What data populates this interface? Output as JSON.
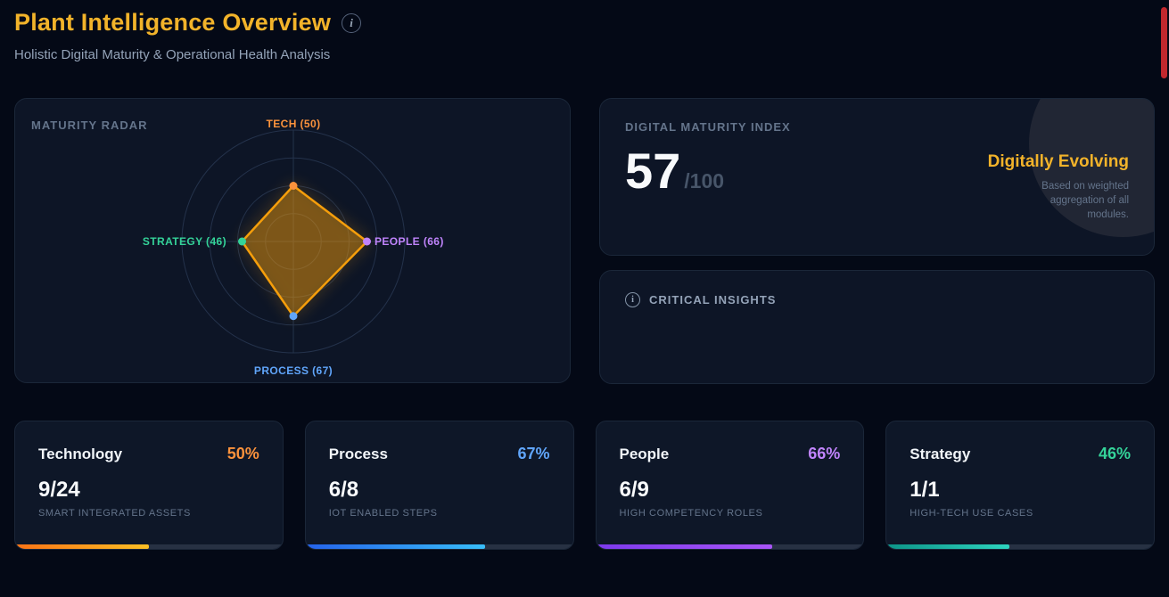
{
  "header": {
    "title": "Plant Intelligence Overview",
    "info_icon": "i",
    "subtitle": "Holistic Digital Maturity & Operational Health Analysis"
  },
  "maturity_radar": {
    "panel_title": "MATURITY RADAR",
    "chart_data": {
      "type": "radar",
      "max": 100,
      "grid_rings": 4,
      "legend_position": "none",
      "series_stroke": "#f59e0b",
      "series_fill": "rgba(245,158,11,0.38)",
      "axes": [
        {
          "label": "TECH",
          "value": 50,
          "display": "TECH (50)",
          "color": "#fb923c"
        },
        {
          "label": "PEOPLE",
          "value": 66,
          "display": "PEOPLE (66)",
          "color": "#c084fc"
        },
        {
          "label": "PROCESS",
          "value": 67,
          "display": "PROCESS (67)",
          "color": "#60a5fa"
        },
        {
          "label": "STRATEGY",
          "value": 46,
          "display": "STRATEGY (46)",
          "color": "#34d399"
        }
      ]
    }
  },
  "maturity_index": {
    "label": "DIGITAL MATURITY INDEX",
    "score": "57",
    "score_suffix": "/100",
    "status": "Digitally Evolving",
    "status_note": "Based on weighted aggregation of all modules."
  },
  "critical_insights": {
    "icon": "i",
    "title": "CRITICAL INSIGHTS"
  },
  "module_cards": [
    {
      "name": "Technology",
      "percent": 50,
      "percent_label": "50%",
      "fraction": "9/24",
      "caption": "SMART INTEGRATED ASSETS",
      "color": "#fb923c",
      "bar_from": "#f97316",
      "bar_to": "#fbbf24"
    },
    {
      "name": "Process",
      "percent": 67,
      "percent_label": "67%",
      "fraction": "6/8",
      "caption": "IOT ENABLED STEPS",
      "color": "#60a5fa",
      "bar_from": "#2563eb",
      "bar_to": "#38bdf8"
    },
    {
      "name": "People",
      "percent": 66,
      "percent_label": "66%",
      "fraction": "6/9",
      "caption": "HIGH COMPETENCY ROLES",
      "color": "#c084fc",
      "bar_from": "#7c3aed",
      "bar_to": "#a855f7"
    },
    {
      "name": "Strategy",
      "percent": 46,
      "percent_label": "46%",
      "fraction": "1/1",
      "caption": "HIGH-TECH USE CASES",
      "color": "#34d399",
      "bar_from": "#0d9488",
      "bar_to": "#2dd4bf"
    }
  ]
}
